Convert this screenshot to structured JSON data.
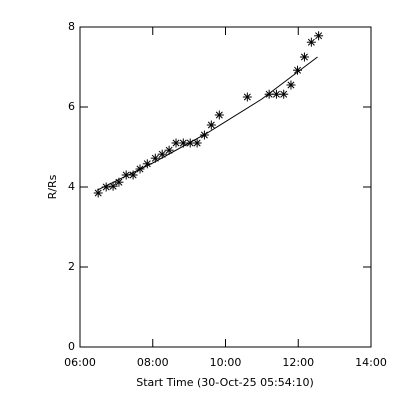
{
  "chart_data": {
    "type": "scatter",
    "xlabel": "Start Time (30-Oct-25 05:54:10)",
    "ylabel": "R/Rs",
    "xlim": [
      6,
      14
    ],
    "xticks": [
      {
        "value": 6,
        "label": "06:00"
      },
      {
        "value": 8,
        "label": "08:00"
      },
      {
        "value": 10,
        "label": "10:00"
      },
      {
        "value": 12,
        "label": "12:00"
      },
      {
        "value": 14,
        "label": "14:00"
      }
    ],
    "ylim": [
      0,
      8
    ],
    "yticks": [
      0,
      2,
      4,
      6,
      8
    ],
    "series": [
      {
        "color": "#000000",
        "marker": "asterisk",
        "x": [
          6.5,
          6.72,
          6.91,
          7.07,
          7.27,
          7.46,
          7.65,
          7.85,
          8.07,
          8.26,
          8.45,
          8.64,
          8.84,
          9.03,
          9.22,
          9.42,
          9.61,
          9.83,
          10.6,
          11.2,
          11.4,
          11.6,
          11.8,
          11.98,
          12.17,
          12.36,
          12.56
        ],
        "values": [
          3.85,
          4.0,
          4.02,
          4.12,
          4.3,
          4.3,
          4.45,
          4.58,
          4.72,
          4.82,
          4.92,
          5.1,
          5.1,
          5.1,
          5.1,
          5.3,
          5.55,
          5.8,
          6.25,
          6.32,
          6.32,
          6.32,
          6.55,
          6.92,
          7.25,
          7.62,
          7.78
        ]
      },
      {
        "color": "#000000",
        "marker": "line",
        "x": [
          6.47,
          8.0,
          9.5,
          11.0,
          12.53
        ],
        "values": [
          3.92,
          4.6,
          5.35,
          6.2,
          7.25
        ]
      }
    ]
  }
}
